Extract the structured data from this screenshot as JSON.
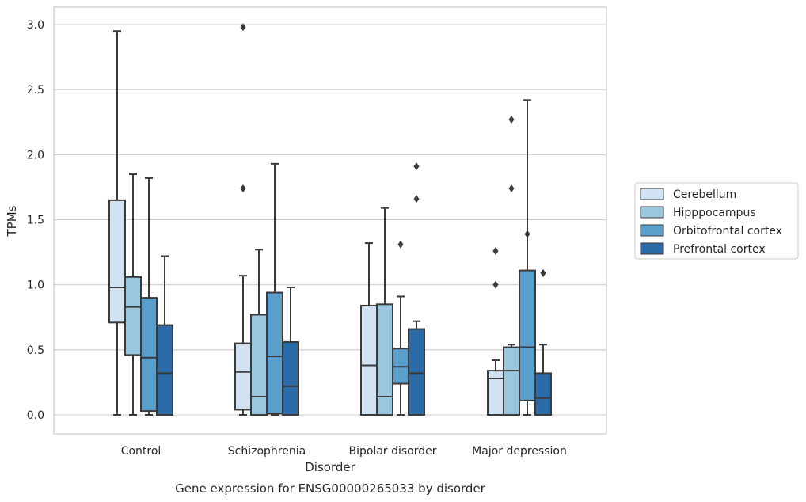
{
  "chart_data": {
    "type": "box",
    "title": "",
    "caption": "Gene expression for ENSG00000265033 by disorder",
    "xlabel": "Disorder",
    "ylabel": "TPMs",
    "ylim": [
      -0.14,
      3.14
    ],
    "yticks": [
      0.0,
      0.5,
      1.0,
      1.5,
      2.0,
      2.5,
      3.0
    ],
    "ytick_labels": [
      "0.0",
      "0.5",
      "1.0",
      "1.5",
      "2.0",
      "2.5",
      "3.0"
    ],
    "grid": "horizontal",
    "legend_position": "right",
    "categories": [
      "Control",
      "Schizophrenia",
      "Bipolar disorder",
      "Major depression"
    ],
    "series": [
      {
        "name": "Cerebellum",
        "color": "#d1e2f2",
        "boxes": [
          {
            "whisker_low": 0.0,
            "q1": 0.71,
            "median": 0.98,
            "q3": 1.65,
            "whisker_high": 2.95,
            "outliers": []
          },
          {
            "whisker_low": 0.0,
            "q1": 0.04,
            "median": 0.33,
            "q3": 0.55,
            "whisker_high": 1.07,
            "outliers": [
              1.74,
              2.98
            ]
          },
          {
            "whisker_low": 0.0,
            "q1": 0.0,
            "median": 0.38,
            "q3": 0.84,
            "whisker_high": 1.32,
            "outliers": []
          },
          {
            "whisker_low": 0.0,
            "q1": 0.0,
            "median": 0.28,
            "q3": 0.34,
            "whisker_high": 0.42,
            "outliers": [
              1.0,
              1.26
            ]
          }
        ]
      },
      {
        "name": "Hipppocampus",
        "color": "#9ac7e0",
        "boxes": [
          {
            "whisker_low": 0.0,
            "q1": 0.46,
            "median": 0.83,
            "q3": 1.06,
            "whisker_high": 1.85,
            "outliers": []
          },
          {
            "whisker_low": 0.0,
            "q1": 0.0,
            "median": 0.14,
            "q3": 0.77,
            "whisker_high": 1.27,
            "outliers": []
          },
          {
            "whisker_low": 0.0,
            "q1": 0.0,
            "median": 0.14,
            "q3": 0.85,
            "whisker_high": 1.59,
            "outliers": []
          },
          {
            "whisker_low": 0.0,
            "q1": 0.0,
            "median": 0.34,
            "q3": 0.52,
            "whisker_high": 0.54,
            "outliers": [
              1.74,
              2.27
            ]
          }
        ]
      },
      {
        "name": "Orbitofrontal cortex",
        "color": "#5a9ecc",
        "boxes": [
          {
            "whisker_low": 0.0,
            "q1": 0.03,
            "median": 0.44,
            "q3": 0.9,
            "whisker_high": 1.82,
            "outliers": []
          },
          {
            "whisker_low": 0.0,
            "q1": 0.01,
            "median": 0.45,
            "q3": 0.94,
            "whisker_high": 1.93,
            "outliers": []
          },
          {
            "whisker_low": 0.0,
            "q1": 0.24,
            "median": 0.37,
            "q3": 0.51,
            "whisker_high": 0.91,
            "outliers": [
              1.31
            ]
          },
          {
            "whisker_low": 0.0,
            "q1": 0.11,
            "median": 0.52,
            "q3": 1.11,
            "whisker_high": 2.42,
            "outliers": [
              1.39
            ]
          }
        ]
      },
      {
        "name": "Prefrontal cortex",
        "color": "#2b6ba8",
        "boxes": [
          {
            "whisker_low": 0.0,
            "q1": 0.0,
            "median": 0.32,
            "q3": 0.69,
            "whisker_high": 1.22,
            "outliers": []
          },
          {
            "whisker_low": 0.0,
            "q1": 0.0,
            "median": 0.22,
            "q3": 0.56,
            "whisker_high": 0.98,
            "outliers": []
          },
          {
            "whisker_low": 0.0,
            "q1": 0.0,
            "median": 0.32,
            "q3": 0.66,
            "whisker_high": 0.72,
            "outliers": [
              1.66,
              1.91
            ]
          },
          {
            "whisker_low": 0.0,
            "q1": 0.0,
            "median": 0.13,
            "q3": 0.32,
            "whisker_high": 0.54,
            "outliers": [
              1.09
            ]
          }
        ]
      }
    ]
  }
}
